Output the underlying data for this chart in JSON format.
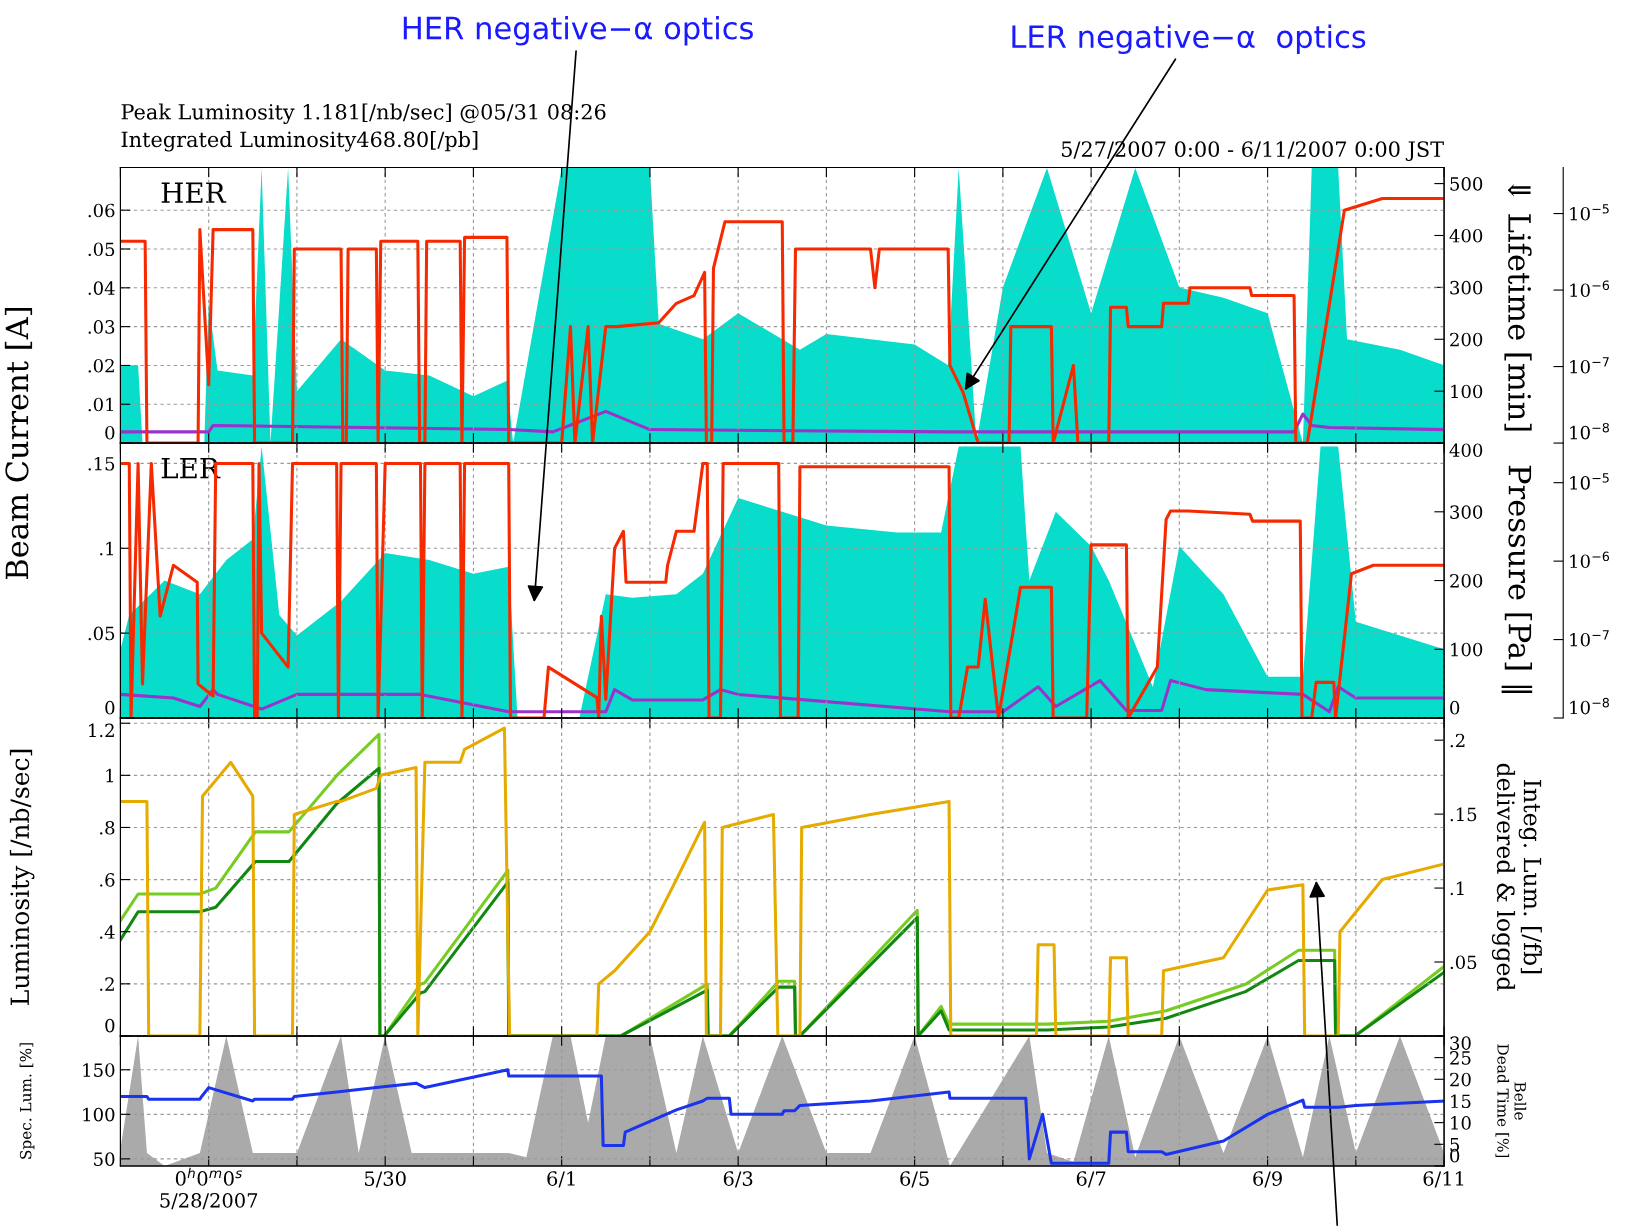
{
  "chart_data": [
    {
      "type": "line",
      "ylabel": "Beam Current [A]",
      "y2label": "⇓ Lifetime [min]",
      "xlim": [
        "2007-05-27",
        "2007-06-11"
      ],
      "xticks": [
        "2007-05-27",
        "2007-05-28",
        "2007-05-29",
        "2007-05-30",
        "2007-05-31",
        "2007-06-01",
        "2007-06-02",
        "2007-06-03",
        "2007-06-04",
        "2007-06-05",
        "2007-06-06",
        "2007-06-07",
        "2007-06-08",
        "2007-06-09",
        "2007-06-10",
        "2007-06-11"
      ],
      "tick_labels": "y",
      "grid": true,
      "log": "y3",
      "ylim": [
        0,
        0.071
      ],
      "yticks": [
        0,
        {
          "value": 0.01,
          "label": ".01"
        },
        {
          "value": 0.02,
          "label": ".02"
        },
        {
          "value": 0.03,
          "label": ".03"
        },
        {
          "value": 0.04,
          "label": ".04"
        },
        {
          "value": 0.05,
          "label": ".05"
        },
        {
          "value": 0.06,
          "label": ".06"
        }
      ],
      "y2lim": [
        0,
        531
      ],
      "y2ticks": [
        100,
        200,
        300,
        400,
        500
      ],
      "y3lim": [
        1e-08,
        4e-05
      ],
      "y3ticks": [
        {
          "value": 1e-08,
          "label": "10$^{−8}$"
        },
        {
          "value": 1e-07,
          "label": "10$^{−7}$"
        },
        {
          "value": 1e-06,
          "label": "10$^{−6}$"
        },
        {
          "value": 1e-05,
          "label": "10$^{−5}$"
        }
      ],
      "annotations": [
        "HER",
        "Peak Luminosity 1.181[/nb/sec] @05/31 08:26",
        "Integrated Luminosity468.80[/pb]",
        "5/27/2007 0:00 - 6/11/2007 0:00 JST",
        "HER negative−α optics",
        {
          "text": "LER negative−α  optics",
          "x": "2007-06-05T13:12",
          "y": 0.013
        }
      ],
      "series": [
        {
          "type": "area",
          "axis": "y2",
          "color": "#08dccb",
          "x": [
            "2007-05-27T00:00",
            "2007-05-27T04:48",
            "2007-05-27T06:00",
            "2007-05-27T22:48",
            "2007-05-28T00:00",
            "2007-05-28T02:24",
            "2007-05-28T12:00",
            "2007-05-28T14:24",
            "2007-05-28T16:48",
            "2007-05-28T21:36",
            "2007-05-29T00:00",
            "2007-05-29T12:00",
            "2007-05-30T00:00",
            "2007-05-30T12:00",
            "2007-05-31T00:00",
            "2007-05-31T09:07",
            "2007-05-31T10:48",
            "2007-06-01T00:00",
            "2007-06-01T12:00",
            "2007-06-02T00:00",
            "2007-06-02T02:24",
            "2007-06-02T14:24",
            "2007-06-03T00:00",
            "2007-06-03T16:48",
            "2007-06-04T00:00",
            "2007-06-04T12:00",
            "2007-06-05T00:00",
            "2007-06-05T09:07",
            "2007-06-05T12:00",
            "2007-06-05T16:48",
            "2007-06-06T00:00",
            "2007-06-06T12:00",
            "2007-06-07T00:00",
            "2007-06-07T12:00",
            "2007-06-08T00:00",
            "2007-06-08T12:00",
            "2007-06-09T00:00",
            "2007-06-09T09:36",
            "2007-06-09T12:00",
            "2007-06-09T19:12",
            "2007-06-09T21:36",
            "2007-06-10T12:00",
            "2007-06-11T00:00"
          ],
          "values": [
            150,
            150,
            0,
            0,
            270,
            140,
            130,
            530,
            0,
            530,
            100,
            200,
            140,
            130,
            90,
            120,
            0,
            530,
            530,
            530,
            230,
            200,
            250,
            180,
            210,
            200,
            190,
            150,
            530,
            0,
            300,
            530,
            250,
            530,
            300,
            280,
            250,
            0,
            530,
            530,
            200,
            180,
            150
          ]
        },
        {
          "axis": "y3",
          "color": "#9933cc",
          "x": [
            "2007-05-27T00:00",
            "2007-05-28T00:00",
            "2007-05-28T01:12",
            "2007-05-31T09:36",
            "2007-05-31T21:36",
            "2007-06-01T04:48",
            "2007-06-01T12:00",
            "2007-06-02T00:00",
            "2007-06-05T09:36",
            "2007-06-09T07:12",
            "2007-06-09T09:36",
            "2007-06-09T12:00",
            "2007-06-09T16:48",
            "2007-06-11T00:00"
          ],
          "values": [
            1.4e-08,
            1.4e-08,
            1.7e-08,
            1.5e-08,
            1.4e-08,
            1.9e-08,
            2.6e-08,
            1.5e-08,
            1.4e-08,
            1.4e-08,
            2.4e-08,
            1.7e-08,
            1.6e-08,
            1.5e-08
          ]
        },
        {
          "axis": "y",
          "color": "#f52a00",
          "x": [
            "2007-05-27T00:00",
            "2007-05-27T06:43",
            "2007-05-27T07:12",
            "2007-05-27T21:07",
            "2007-05-27T21:36",
            "2007-05-28T00:00",
            "2007-05-28T01:12",
            "2007-05-28T12:00",
            "2007-05-28T12:29",
            "2007-05-28T22:48",
            "2007-05-28T23:17",
            "2007-05-29T12:00",
            "2007-05-29T12:29",
            "2007-05-29T13:26",
            "2007-05-29T13:55",
            "2007-05-29T21:36",
            "2007-05-29T22:05",
            "2007-05-29T22:48",
            "2007-05-30T08:53",
            "2007-05-30T09:22",
            "2007-05-30T10:48",
            "2007-05-30T11:17",
            "2007-05-30T20:24",
            "2007-05-30T20:53",
            "2007-05-30T21:36",
            "2007-05-31T09:07",
            "2007-05-31T09:36",
            "2007-06-01T00:00",
            "2007-06-01T02:24",
            "2007-06-01T03:36",
            "2007-06-01T07:12",
            "2007-06-01T08:24",
            "2007-06-01T12:00",
            "2007-06-01T14:24",
            "2007-06-01T14:53",
            "2007-06-02T02:24",
            "2007-06-02T07:12",
            "2007-06-02T12:00",
            "2007-06-02T14:53",
            "2007-06-02T15:22",
            "2007-06-02T16:48",
            "2007-06-02T17:17",
            "2007-06-02T20:24",
            "2007-06-03T12:00",
            "2007-06-03T12:29",
            "2007-06-03T14:53",
            "2007-06-03T15:36",
            "2007-06-04T12:00",
            "2007-06-04T13:12",
            "2007-06-04T14:24",
            "2007-06-05T09:07",
            "2007-06-05T09:36",
            "2007-06-05T13:12",
            "2007-06-05T17:17",
            "2007-06-06T01:41",
            "2007-06-06T02:10",
            "2007-06-06T13:12",
            "2007-06-06T13:41",
            "2007-06-06T19:12",
            "2007-06-06T20:24",
            "2007-06-07T04:48",
            "2007-06-07T05:17",
            "2007-06-07T09:36",
            "2007-06-07T10:05",
            "2007-06-07T19:12",
            "2007-06-07T19:41",
            "2007-06-08T02:24",
            "2007-06-08T02:53",
            "2007-06-08T19:12",
            "2007-06-08T19:41",
            "2007-06-09T07:12",
            "2007-06-09T07:41",
            "2007-06-09T10:48",
            "2007-06-09T20:53",
            "2007-06-10T07:12",
            "2007-06-11T00:00"
          ],
          "values": [
            0.052,
            0.052,
            0,
            0,
            0.055,
            0.015,
            0.055,
            0.055,
            0,
            0,
            0.05,
            0.05,
            0,
            0,
            0.05,
            0.05,
            0,
            0.052,
            0.052,
            0,
            0,
            0.052,
            0.052,
            0,
            0.053,
            0.053,
            0,
            0,
            0.03,
            0,
            0.03,
            0,
            0.03,
            0.03,
            0.03,
            0.031,
            0.036,
            0.038,
            0.044,
            0,
            0,
            0.045,
            0.057,
            0.057,
            0,
            0,
            0.05,
            0.05,
            0.04,
            0.05,
            0.05,
            0.02,
            0.013,
            0,
            0,
            0.03,
            0.03,
            0,
            0.02,
            0,
            0,
            0.035,
            0.035,
            0.03,
            0.03,
            0.036,
            0.036,
            0.04,
            0.04,
            0.038,
            0.038,
            0,
            0,
            0.06,
            0.063,
            0.063
          ]
        }
      ]
    },
    {
      "type": "line",
      "y3label": "Pressure [Pa] ‖",
      "xlim": [
        "2007-05-27",
        "2007-06-11"
      ],
      "xticks": [
        "2007-05-27",
        "2007-05-28",
        "2007-05-29",
        "2007-05-30",
        "2007-05-31",
        "2007-06-01",
        "2007-06-02",
        "2007-06-03",
        "2007-06-04",
        "2007-06-05",
        "2007-06-06",
        "2007-06-07",
        "2007-06-08",
        "2007-06-09",
        "2007-06-10",
        "2007-06-11"
      ],
      "tick_labels": "y",
      "grid": true,
      "log": "y3",
      "ylim": [
        0,
        0.162
      ],
      "yticks": [
        0,
        {
          "value": 0.05,
          "label": ".05"
        },
        {
          "value": 0.1,
          "label": ".1"
        },
        {
          "value": 0.15,
          "label": ".15"
        }
      ],
      "y2lim": [
        0,
        400
      ],
      "y2ticks": [
        0,
        100,
        200,
        300,
        400
      ],
      "y3lim": [
        1e-08,
        3.2e-05
      ],
      "y3ticks": [
        {
          "value": 1e-08,
          "label": "10$^{−8}$"
        },
        {
          "value": 1e-07,
          "label": "10$^{−7}$"
        },
        {
          "value": 1e-06,
          "label": "10$^{−6}$"
        },
        {
          "value": 1e-05,
          "label": "10$^{−5}$"
        }
      ],
      "annotations": [
        "LER"
      ],
      "series": [
        {
          "type": "area",
          "axis": "y2",
          "color": "#08dccb",
          "x": [
            "2007-05-27T00:00",
            "2007-05-27T02:24",
            "2007-05-27T12:00",
            "2007-05-27T21:36",
            "2007-05-28T04:48",
            "2007-05-28T12:00",
            "2007-05-28T14:24",
            "2007-05-28T19:12",
            "2007-05-29T00:00",
            "2007-05-29T12:00",
            "2007-05-30T00:00",
            "2007-05-30T12:00",
            "2007-05-31T00:00",
            "2007-05-31T09:36",
            "2007-05-31T12:00",
            "2007-06-01T04:48",
            "2007-06-01T12:00",
            "2007-06-01T19:12",
            "2007-06-02T07:12",
            "2007-06-02T14:24",
            "2007-06-03T00:00",
            "2007-06-03T12:00",
            "2007-06-04T00:00",
            "2007-06-04T19:12",
            "2007-06-05T07:12",
            "2007-06-05T12:00",
            "2007-06-06T04:48",
            "2007-06-06T07:12",
            "2007-06-06T14:24",
            "2007-06-07T00:00",
            "2007-06-07T04:48",
            "2007-06-07T16:48",
            "2007-06-08T00:00",
            "2007-06-08T12:00",
            "2007-06-09T00:00",
            "2007-06-09T09:36",
            "2007-06-09T14:24",
            "2007-06-09T19:12",
            "2007-06-10T00:00",
            "2007-06-10T12:00",
            "2007-06-11T00:00"
          ],
          "values": [
            100,
            150,
            200,
            180,
            230,
            260,
            395,
            150,
            120,
            170,
            240,
            230,
            210,
            220,
            0,
            0,
            180,
            175,
            180,
            210,
            320,
            300,
            280,
            270,
            270,
            395,
            395,
            200,
            300,
            250,
            200,
            45,
            250,
            180,
            60,
            60,
            395,
            395,
            140,
            120,
            100
          ]
        },
        {
          "axis": "y3",
          "color": "#9933cc",
          "x": [
            "2007-05-27T00:00",
            "2007-05-27T14:24",
            "2007-05-27T21:36",
            "2007-05-28T01:12",
            "2007-05-28T02:24",
            "2007-05-28T14:24",
            "2007-05-29T00:00",
            "2007-05-30T09:36",
            "2007-05-31T09:36",
            "2007-06-01T12:00",
            "2007-06-01T14:24",
            "2007-06-01T19:12",
            "2007-06-02T14:24",
            "2007-06-02T19:12",
            "2007-06-03T00:00",
            "2007-06-05T09:36",
            "2007-06-06T00:00",
            "2007-06-06T09:36",
            "2007-06-06T14:24",
            "2007-06-07T02:24",
            "2007-06-07T09:36",
            "2007-06-07T19:12",
            "2007-06-07T21:36",
            "2007-06-08T07:12",
            "2007-06-09T09:36",
            "2007-06-09T16:48",
            "2007-06-09T19:12",
            "2007-06-10T00:00",
            "2007-06-11T00:00"
          ],
          "values": [
            2e-08,
            1.8e-08,
            1.4e-08,
            2.3e-08,
            2e-08,
            1.3e-08,
            2e-08,
            2e-08,
            1.2e-08,
            1.2e-08,
            2.3e-08,
            1.7e-08,
            1.7e-08,
            2.3e-08,
            2e-08,
            1.2e-08,
            1.2e-08,
            2.5e-08,
            1.4e-08,
            3e-08,
            1.25e-08,
            1.25e-08,
            3e-08,
            2.3e-08,
            2e-08,
            1.2e-08,
            2.5e-08,
            1.8e-08,
            1.8e-08
          ]
        },
        {
          "axis": "y",
          "color": "#f52a00",
          "x": [
            "2007-05-27T00:00",
            "2007-05-27T02:24",
            "2007-05-27T02:53",
            "2007-05-27T04:48",
            "2007-05-27T06:00",
            "2007-05-27T08:24",
            "2007-05-27T10:48",
            "2007-05-27T14:24",
            "2007-05-27T20:53",
            "2007-05-27T21:07",
            "2007-05-28T01:12",
            "2007-05-28T01:55",
            "2007-05-28T12:00",
            "2007-05-28T12:29",
            "2007-05-28T13:12",
            "2007-05-28T13:41",
            "2007-05-28T14:24",
            "2007-05-28T21:36",
            "2007-05-28T22:48",
            "2007-05-29T10:48",
            "2007-05-29T11:17",
            "2007-05-29T12:00",
            "2007-05-29T21:36",
            "2007-05-29T22:05",
            "2007-05-30T00:00",
            "2007-05-30T09:36",
            "2007-05-30T10:05",
            "2007-05-30T10:48",
            "2007-05-30T20:24",
            "2007-05-30T20:53",
            "2007-05-30T21:36",
            "2007-05-31T09:36",
            "2007-05-31T10:05",
            "2007-05-31T19:12",
            "2007-05-31T20:24",
            "2007-06-01T09:36",
            "2007-06-01T10:05",
            "2007-06-01T10:48",
            "2007-06-01T12:00",
            "2007-06-01T14:24",
            "2007-06-01T16:48",
            "2007-06-01T17:31",
            "2007-06-02T04:19",
            "2007-06-02T04:48",
            "2007-06-02T07:12",
            "2007-06-02T12:00",
            "2007-06-02T14:24",
            "2007-06-02T15:36",
            "2007-06-02T16:05",
            "2007-06-02T19:12",
            "2007-06-02T19:55",
            "2007-06-03T11:02",
            "2007-06-03T11:31",
            "2007-06-03T16:19",
            "2007-06-03T16:48",
            "2007-06-05T09:22",
            "2007-06-05T09:50",
            "2007-06-05T12:00",
            "2007-06-05T14:24",
            "2007-06-05T17:17",
            "2007-06-05T19:12",
            "2007-06-05T22:48",
            "2007-06-06T04:48",
            "2007-06-06T13:12",
            "2007-06-06T13:41",
            "2007-06-06T22:48",
            "2007-06-07T00:00",
            "2007-06-07T09:36",
            "2007-06-07T10:05",
            "2007-06-07T18:00",
            "2007-06-07T20:24",
            "2007-06-07T21:36",
            "2007-06-08T02:24",
            "2007-06-08T19:12",
            "2007-06-08T19:55",
            "2007-06-09T08:53",
            "2007-06-09T09:22",
            "2007-06-09T12:00",
            "2007-06-09T13:12",
            "2007-06-09T18:00",
            "2007-06-09T18:29",
            "2007-06-09T22:48",
            "2007-06-10T04:48",
            "2007-06-11T00:00"
          ],
          "values": [
            0.15,
            0.15,
            0,
            0.15,
            0.02,
            0.15,
            0.06,
            0.09,
            0.08,
            0.02,
            0.013,
            0.15,
            0.15,
            0,
            0,
            0.15,
            0.05,
            0.03,
            0.15,
            0.15,
            0,
            0.15,
            0.15,
            0,
            0.15,
            0.15,
            0,
            0.15,
            0.15,
            0,
            0.15,
            0.15,
            0,
            0,
            0.03,
            0.012,
            0,
            0.06,
            0.011,
            0.1,
            0.11,
            0.08,
            0.08,
            0.09,
            0.11,
            0.11,
            0.15,
            0.15,
            0,
            0,
            0.15,
            0.15,
            0,
            0,
            0.148,
            0.148,
            0,
            0,
            0.03,
            0.03,
            0.07,
            0,
            0.077,
            0.077,
            0,
            0,
            0.102,
            0.102,
            0,
            0.03,
            0.117,
            0.122,
            0.122,
            0.12,
            0.116,
            0.116,
            0,
            0,
            0.021,
            0.021,
            0,
            0.085,
            0.09,
            0.09
          ]
        }
      ]
    },
    {
      "type": "line",
      "ylabel": "Luminosity [/nb/sec]",
      "y2label": "Integ. Lum. [/fb]\ndelivered & logged",
      "xlim": [
        "2007-05-27",
        "2007-06-11"
      ],
      "xticks": [
        "2007-05-27",
        "2007-05-28",
        "2007-05-29",
        "2007-05-30",
        "2007-05-31",
        "2007-06-01",
        "2007-06-02",
        "2007-06-03",
        "2007-06-04",
        "2007-06-05",
        "2007-06-06",
        "2007-06-07",
        "2007-06-08",
        "2007-06-09",
        "2007-06-10",
        "2007-06-11"
      ],
      "tick_labels": "y",
      "grid": true,
      "ylim": [
        0,
        1.22
      ],
      "yticks": [
        0,
        {
          "value": 0.2,
          "label": ".2"
        },
        {
          "value": 0.4,
          "label": ".4"
        },
        {
          "value": 0.6,
          "label": ".6"
        },
        {
          "value": 0.8,
          "label": ".8"
        },
        1,
        1.2
      ],
      "y2lim": [
        0,
        0.215
      ],
      "y2ticks": [
        {
          "value": 0.05,
          "label": ".05"
        },
        {
          "value": 0.1,
          "label": ".1"
        },
        {
          "value": 0.15,
          "label": ".15"
        },
        {
          "value": 0.2,
          "label": ".2"
        }
      ],
      "x": [
        "2007-05-27T00:00",
        "2007-05-27T04:48",
        "2007-05-27T21:36",
        "2007-05-28T01:55",
        "2007-05-28T12:43",
        "2007-05-28T21:50",
        "2007-05-29T10:48",
        "2007-05-29T22:19",
        "2007-05-29T22:34",
        "2007-05-29T23:46",
        "2007-05-30T09:36",
        "2007-05-30T10:48",
        "2007-05-31T09:22",
        "2007-05-31T09:36",
        "2007-06-01T16:05",
        "2007-06-02T15:36",
        "2007-06-02T15:50",
        "2007-06-02T21:36",
        "2007-06-03T11:02",
        "2007-06-03T15:22",
        "2007-06-03T15:36",
        "2007-06-03T16:48",
        "2007-06-05T00:43",
        "2007-06-05T00:58",
        "2007-06-05T07:12",
        "2007-06-05T09:22",
        "2007-06-06T12:00",
        "2007-06-07T04:48",
        "2007-06-07T20:24",
        "2007-06-08T18:00",
        "2007-06-09T08:24",
        "2007-06-09T18:14",
        "2007-06-09T18:29",
        "2007-06-09T23:46",
        "2007-06-11T00:00"
      ],
      "series": [
        {
          "axis": "y2",
          "color": "#77cc22",
          "values": [
            0.078,
            0.096,
            0.096,
            0.1,
            0.138,
            0.138,
            0.176,
            0.204,
            0,
            0,
            0.035,
            0.036,
            0.112,
            0,
            0,
            0.035,
            0,
            0,
            0.037,
            0.037,
            0,
            0,
            0.085,
            0,
            0.02,
            0.008,
            0.008,
            0.01,
            0.017,
            0.035,
            0.058,
            0.058,
            0,
            0,
            0.047
          ]
        },
        {
          "axis": "y2",
          "color": "#118811",
          "values": [
            0.065,
            0.084,
            0.084,
            0.087,
            0.118,
            0.118,
            0.157,
            0.181,
            0,
            0,
            0.029,
            0.03,
            0.104,
            0,
            0,
            0.031,
            0,
            0,
            0.033,
            0.033,
            0,
            0,
            0.08,
            0,
            0.017,
            0.004,
            0.004,
            0.006,
            0.012,
            0.03,
            0.051,
            0.051,
            0,
            0,
            0.043
          ]
        },
        {
          "axis": "y",
          "color": "#e5ab00",
          "x": [
            "2007-05-27T00:00",
            "2007-05-27T07:12",
            "2007-05-27T07:41",
            "2007-05-27T21:36",
            "2007-05-27T22:19",
            "2007-05-28T06:00",
            "2007-05-28T12:00",
            "2007-05-28T12:29",
            "2007-05-28T22:48",
            "2007-05-28T23:17",
            "2007-05-29T10:48",
            "2007-05-29T12:00",
            "2007-05-29T21:36",
            "2007-05-29T22:48",
            "2007-05-30T08:24",
            "2007-05-30T08:53",
            "2007-05-30T10:48",
            "2007-05-30T20:24",
            "2007-05-30T21:36",
            "2007-05-31T08:26",
            "2007-05-31T09:50",
            "2007-06-01T09:36",
            "2007-06-01T10:05",
            "2007-06-01T14:24",
            "2007-06-02T00:00",
            "2007-06-02T07:12",
            "2007-06-02T14:53",
            "2007-06-02T15:22",
            "2007-06-02T19:12",
            "2007-06-02T19:41",
            "2007-06-03T09:36",
            "2007-06-03T10:48",
            "2007-06-03T16:48",
            "2007-06-03T17:17",
            "2007-06-04T12:00",
            "2007-06-05T09:22",
            "2007-06-05T09:50",
            "2007-06-06T09:07",
            "2007-06-06T09:36",
            "2007-06-06T13:55",
            "2007-06-06T14:24",
            "2007-06-07T04:48",
            "2007-06-07T05:17",
            "2007-06-07T09:36",
            "2007-06-07T10:05",
            "2007-06-07T19:12",
            "2007-06-07T19:41",
            "2007-06-08T12:00",
            "2007-06-09T00:00",
            "2007-06-09T09:36",
            "2007-06-09T10:05",
            "2007-06-09T19:12",
            "2007-06-09T19:41",
            "2007-06-10T07:12",
            "2007-06-11T00:00"
          ],
          "values": [
            0.9,
            0.9,
            0,
            0,
            0.92,
            1.05,
            0.92,
            0,
            0,
            0.85,
            0.9,
            0.9,
            0.95,
            1.0,
            1.03,
            0,
            1.05,
            1.05,
            1.1,
            1.181,
            0,
            0,
            0.2,
            0.25,
            0.4,
            0.6,
            0.82,
            0,
            0,
            0.8,
            0.85,
            0,
            0,
            0.8,
            0.85,
            0.9,
            0,
            0,
            0.35,
            0.35,
            0,
            0,
            0.3,
            0.3,
            0,
            0,
            0.25,
            0.3,
            0.56,
            0.58,
            0,
            0,
            0.4,
            0.6,
            0.66
          ]
        }
      ]
    },
    {
      "type": "line",
      "ylabel": "Spec. Lum. [%]",
      "y2label": "Belle\nDead Time [%]",
      "xlim": [
        "2007-05-27",
        "2007-06-11"
      ],
      "xticks": [
        {
          "value": "2007-05-27",
          "label": null
        },
        {
          "value": "2007-05-28",
          "label": "0$^{h}$0$^{m}$0$^{s}$\n5/28/2007"
        },
        {
          "value": "2007-05-29",
          "label": null
        },
        {
          "value": "2007-05-30",
          "label": "5/30"
        },
        {
          "value": "2007-05-31",
          "label": null
        },
        {
          "value": "2007-06-01",
          "label": "6/1"
        },
        {
          "value": "2007-06-02",
          "label": null
        },
        {
          "value": "2007-06-03",
          "label": "6/3"
        },
        {
          "value": "2007-06-04",
          "label": null
        },
        {
          "value": "2007-06-05",
          "label": "6/5"
        },
        {
          "value": "2007-06-06",
          "label": null
        },
        {
          "value": "2007-06-07",
          "label": "6/7"
        },
        {
          "value": "2007-06-08",
          "label": null
        },
        {
          "value": "2007-06-09",
          "label": "6/9"
        },
        {
          "value": "2007-06-10",
          "label": null
        },
        {
          "value": "2007-06-11",
          "label": "6/11"
        }
      ],
      "grid": true,
      "ylim": [
        42,
        188
      ],
      "yticks": [
        50,
        100,
        150
      ],
      "y2lim": [
        0,
        30
      ],
      "y2ticks": [
        0,
        5,
        10,
        15,
        20,
        25,
        30
      ],
      "series": [
        {
          "type": "area",
          "axis": "y2",
          "color": "#aaaaaa",
          "x": [
            "2007-05-27T00:00",
            "2007-05-27T04:48",
            "2007-05-27T07:12",
            "2007-05-27T12:00",
            "2007-05-27T21:36",
            "2007-05-28T04:48",
            "2007-05-28T12:00",
            "2007-05-29T00:00",
            "2007-05-29T12:00",
            "2007-05-29T16:48",
            "2007-05-30T00:00",
            "2007-05-30T07:12",
            "2007-05-30T14:24",
            "2007-05-31T00:00",
            "2007-05-31T09:36",
            "2007-05-31T14:24",
            "2007-05-31T21:36",
            "2007-06-01T02:24",
            "2007-06-01T07:12",
            "2007-06-01T12:00",
            "2007-06-02T00:00",
            "2007-06-02T07:12",
            "2007-06-02T14:24",
            "2007-06-03T00:00",
            "2007-06-03T12:00",
            "2007-06-04T00:00",
            "2007-06-04T12:00",
            "2007-06-05T00:00",
            "2007-06-05T09:36",
            "2007-06-06T07:12",
            "2007-06-06T12:00",
            "2007-06-06T19:12",
            "2007-06-07T04:48",
            "2007-06-07T12:00",
            "2007-06-08T00:00",
            "2007-06-08T12:00",
            "2007-06-09T00:00",
            "2007-06-09T09:36",
            "2007-06-09T16:48",
            "2007-06-10T00:00",
            "2007-06-10T12:00",
            "2007-06-11T00:00"
          ],
          "values": [
            4,
            30,
            3,
            0,
            3,
            30,
            3,
            3,
            30,
            3,
            30,
            3,
            3,
            3,
            3,
            2,
            30,
            30,
            10,
            30,
            30,
            3,
            30,
            3,
            30,
            3,
            3,
            30,
            0,
            30,
            3,
            1,
            30,
            2,
            30,
            3,
            30,
            2,
            30,
            3,
            30,
            3
          ]
        },
        {
          "axis": "y",
          "color": "#1a33ee",
          "x": [
            "2007-05-27T00:00",
            "2007-05-27T07:12",
            "2007-05-27T07:41",
            "2007-05-27T21:36",
            "2007-05-27T22:05",
            "2007-05-28T00:00",
            "2007-05-28T12:00",
            "2007-05-28T12:29",
            "2007-05-28T22:48",
            "2007-05-28T23:17",
            "2007-05-29T10:48",
            "2007-05-29T21:36",
            "2007-05-30T08:24",
            "2007-05-30T10:48",
            "2007-05-31T09:22",
            "2007-05-31T09:36",
            "2007-06-01T10:48",
            "2007-06-01T11:17",
            "2007-06-01T16:48",
            "2007-06-01T17:17",
            "2007-06-02T07:12",
            "2007-06-02T14:24",
            "2007-06-02T15:36",
            "2007-06-02T21:36",
            "2007-06-02T22:05",
            "2007-06-03T12:00",
            "2007-06-03T12:29",
            "2007-06-03T15:22",
            "2007-06-03T16:48",
            "2007-06-04T12:00",
            "2007-06-05T09:22",
            "2007-06-05T09:36",
            "2007-06-06T06:14",
            "2007-06-06T07:12",
            "2007-06-06T10:48",
            "2007-06-06T13:12",
            "2007-06-07T04:48",
            "2007-06-07T05:17",
            "2007-06-07T09:36",
            "2007-06-07T10:05",
            "2007-06-07T19:12",
            "2007-06-07T20:24",
            "2007-06-08T12:00",
            "2007-06-09T00:00",
            "2007-06-09T09:36",
            "2007-06-09T10:05",
            "2007-06-09T19:12",
            "2007-06-10T00:00",
            "2007-06-11T00:00"
          ],
          "values": [
            120,
            120,
            117,
            117,
            120,
            130,
            115,
            117,
            117,
            120,
            125,
            130,
            135,
            130,
            150,
            143,
            143,
            65,
            65,
            80,
            105,
            115,
            118,
            118,
            100,
            100,
            104,
            104,
            110,
            115,
            125,
            118,
            118,
            50,
            100,
            45,
            45,
            80,
            80,
            58,
            58,
            55,
            70,
            100,
            116,
            108,
            108,
            110,
            115
          ]
        }
      ]
    }
  ]
}
